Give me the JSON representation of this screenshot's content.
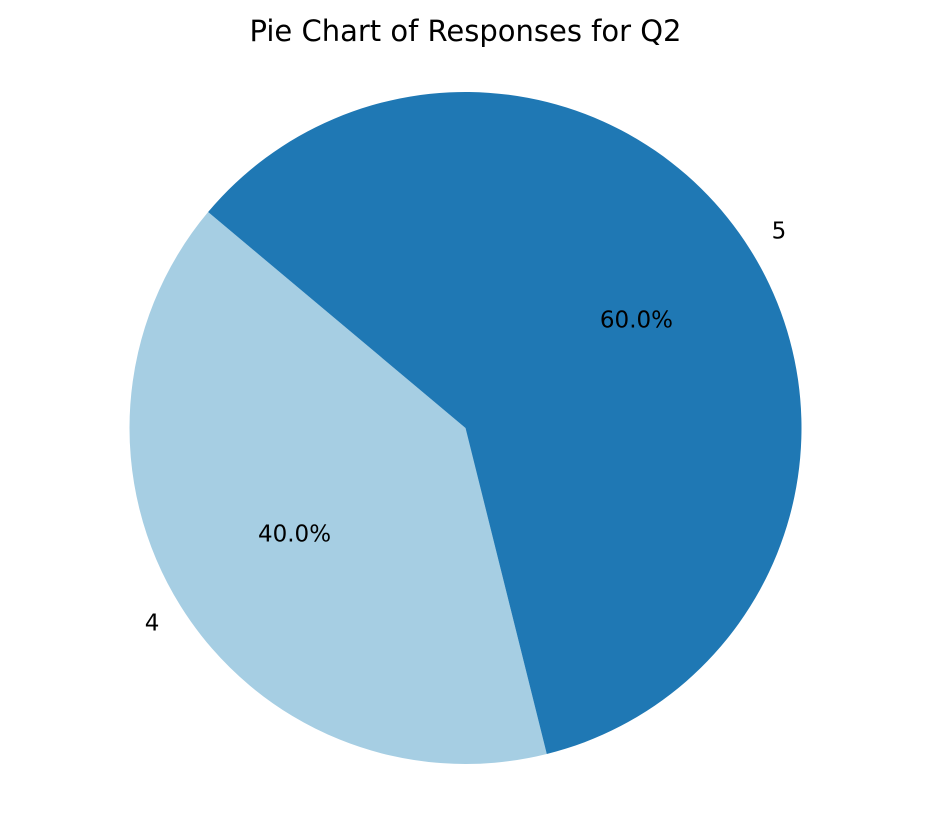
{
  "chart_data": {
    "type": "pie",
    "title": "Pie Chart of Responses for Q2",
    "labels": [
      "4",
      "5"
    ],
    "values": [
      40.0,
      60.0
    ],
    "percent_labels": [
      "40.0%",
      "60.0%"
    ],
    "colors": [
      "#a6cee3",
      "#1f78b4"
    ],
    "legend": "none"
  }
}
